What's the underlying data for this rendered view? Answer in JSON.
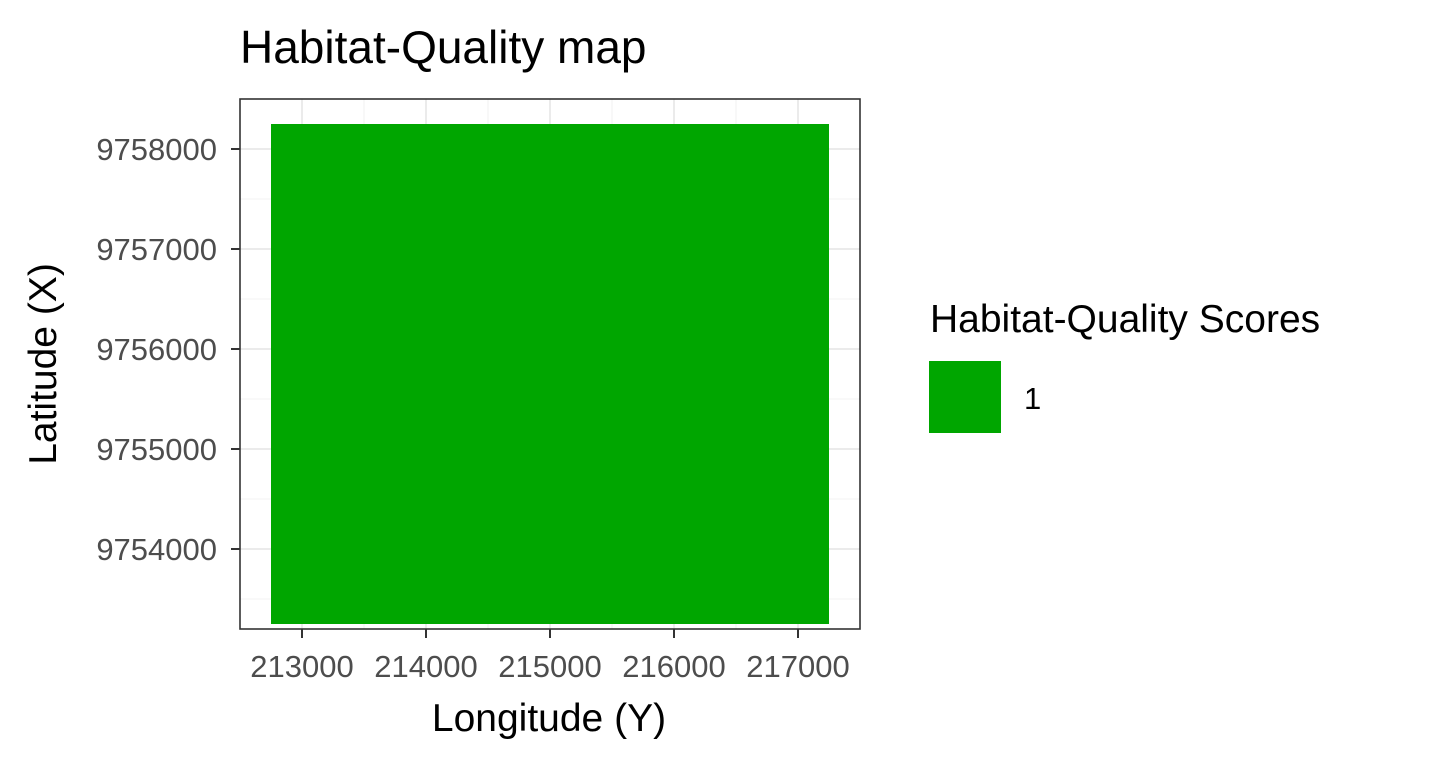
{
  "chart_data": {
    "type": "heatmap",
    "title": "Habitat-Quality map",
    "xlabel": "Longitude (Y)",
    "ylabel": "Latitude (X)",
    "xlim": [
      212500,
      217500
    ],
    "ylim": [
      9753200,
      9758500
    ],
    "x_ticks": [
      213000,
      214000,
      215000,
      216000,
      217000
    ],
    "x_tick_labels": [
      "213000",
      "214000",
      "215000",
      "216000",
      "217000"
    ],
    "y_ticks": [
      9754000,
      9755000,
      9756000,
      9757000,
      9758000
    ],
    "y_tick_labels": [
      "9754000",
      "9755000",
      "9756000",
      "9757000",
      "9758000"
    ],
    "grid": true,
    "cells": [
      {
        "x_min": 212750,
        "x_max": 217250,
        "y_min": 9753250,
        "y_max": 9758250,
        "score": 1
      }
    ],
    "legend": {
      "title": "Habitat-Quality Scores",
      "position": "right",
      "entries": [
        {
          "label": "1",
          "color": "#00a600"
        }
      ]
    },
    "colors": {
      "fill": "#00a600",
      "panel_border": "#333333",
      "grid_major": "#ebebeb",
      "grid_minor": "#f5f5f5",
      "tick": "#333333"
    }
  }
}
